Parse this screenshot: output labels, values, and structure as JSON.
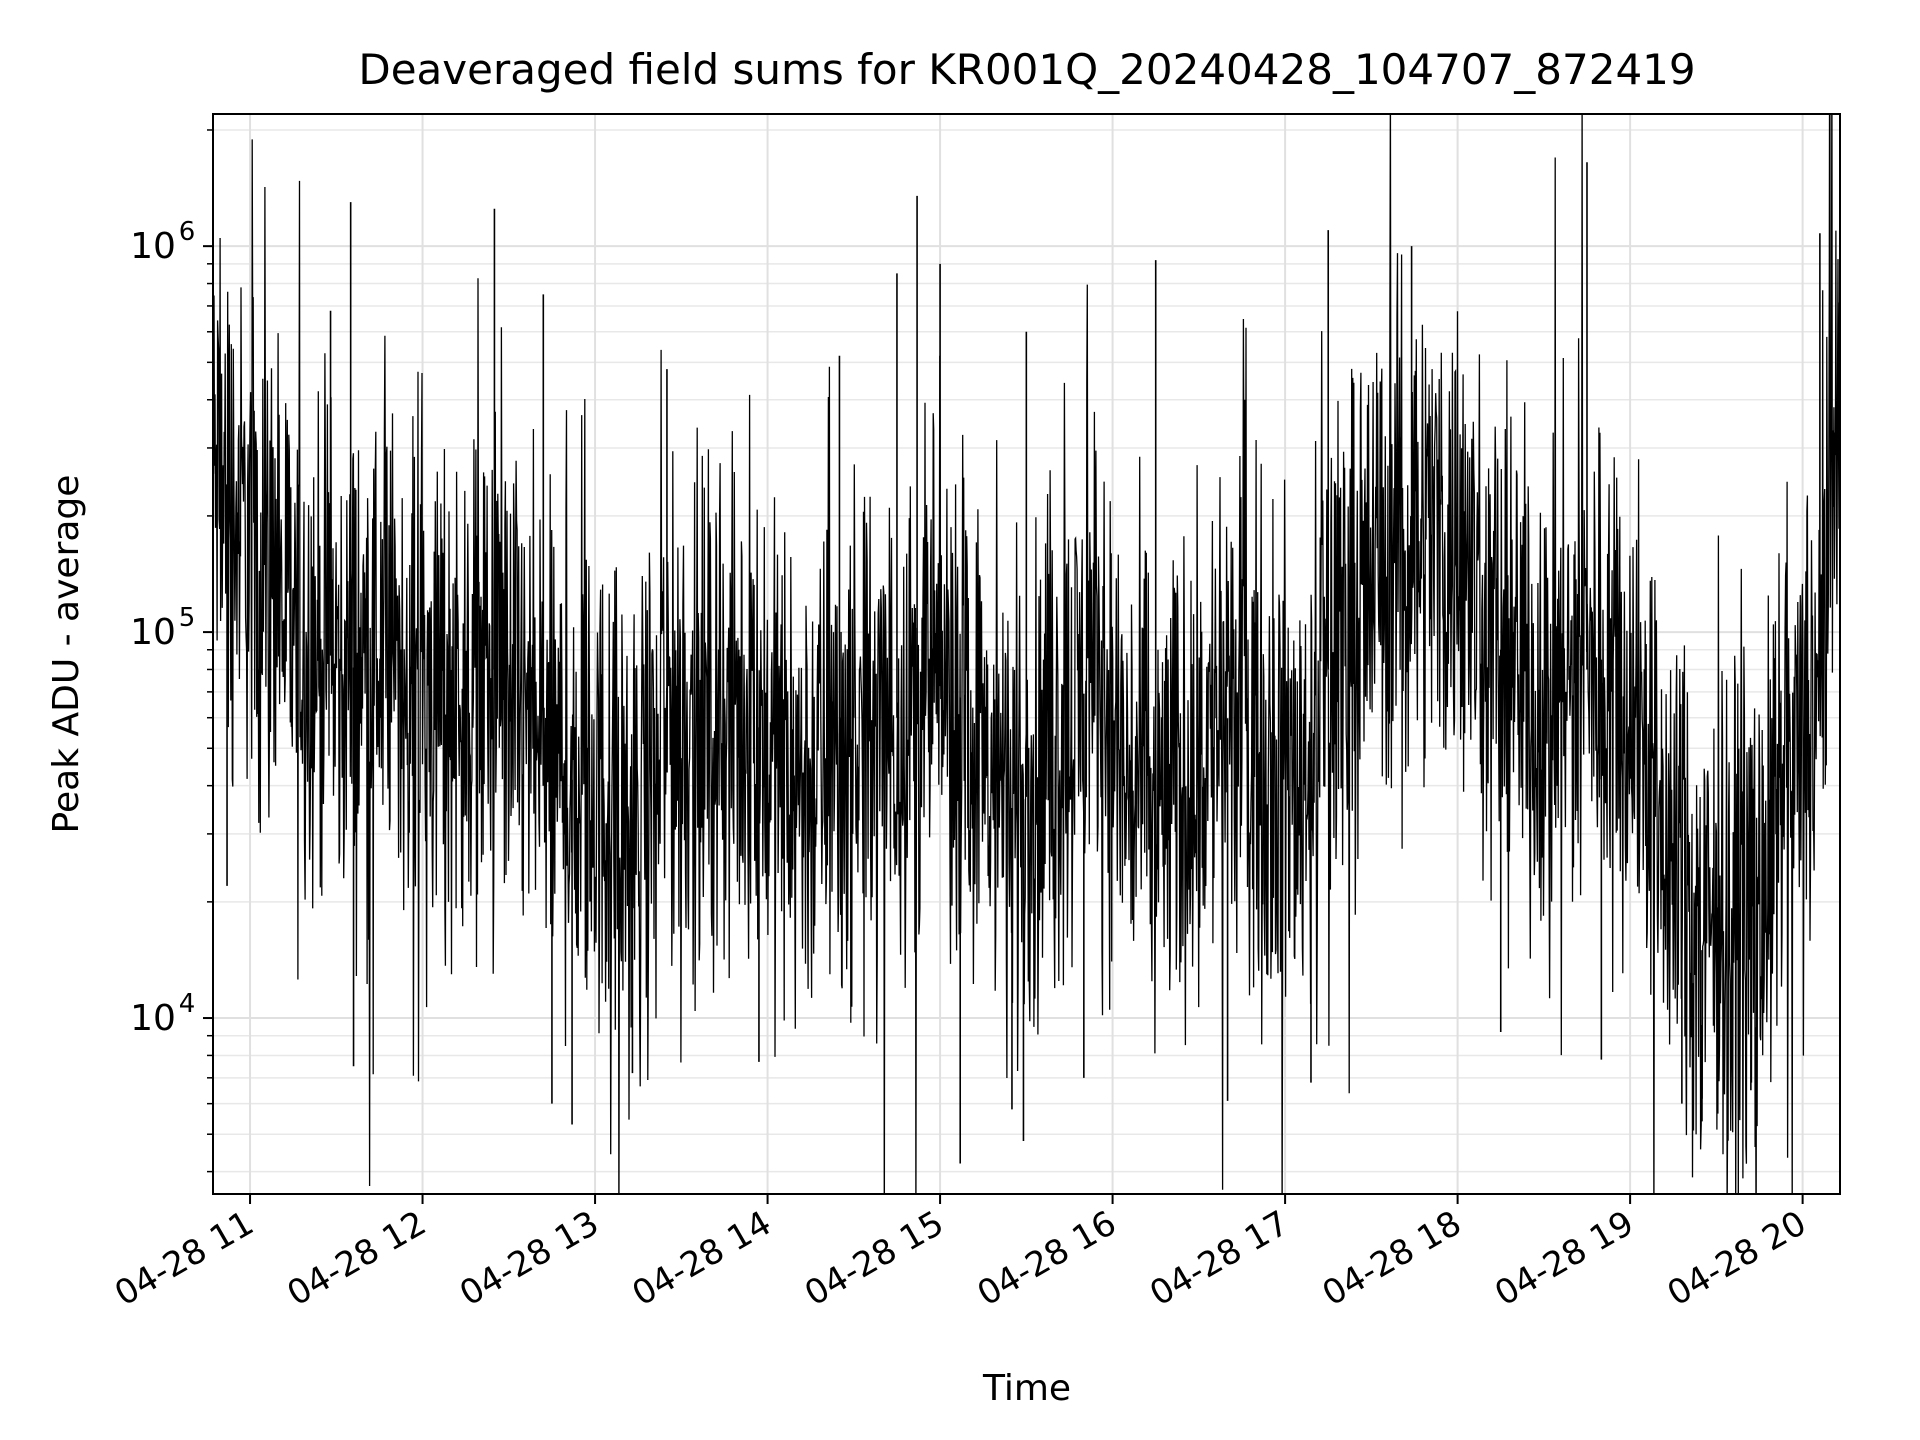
{
  "chart_data": {
    "type": "line",
    "title": "Deaveraged field sums for KR001Q_20240428_104707_872419",
    "xlabel": "Time",
    "ylabel": "Peak ADU - average",
    "y_scale": "log",
    "ylim": [
      3500,
      2200000
    ],
    "xlim": [
      "2024-04-28 10:47:07",
      "2024-04-28 20:13:00"
    ],
    "grid": true,
    "grid_minor": true,
    "line_color": "#000000",
    "x_ticks": [
      {
        "t": "2024-04-28 11:00",
        "label": "04-28 11"
      },
      {
        "t": "2024-04-28 12:00",
        "label": "04-28 12"
      },
      {
        "t": "2024-04-28 13:00",
        "label": "04-28 13"
      },
      {
        "t": "2024-04-28 14:00",
        "label": "04-28 14"
      },
      {
        "t": "2024-04-28 15:00",
        "label": "04-28 15"
      },
      {
        "t": "2024-04-28 16:00",
        "label": "04-28 16"
      },
      {
        "t": "2024-04-28 17:00",
        "label": "04-28 17"
      },
      {
        "t": "2024-04-28 18:00",
        "label": "04-28 18"
      },
      {
        "t": "2024-04-28 19:00",
        "label": "04-28 19"
      },
      {
        "t": "2024-04-28 20:00",
        "label": "04-28 20"
      }
    ],
    "y_ticks": [
      {
        "v": 10000,
        "label": "10",
        "exp": "4"
      },
      {
        "v": 100000,
        "label": "10",
        "exp": "5"
      },
      {
        "v": 1000000,
        "label": "10",
        "exp": "6"
      }
    ],
    "series": [
      {
        "x": [
          "2024-04-28 10:47",
          "2024-04-28 10:55",
          "2024-04-28 11:05",
          "2024-04-28 11:15",
          "2024-04-28 11:25",
          "2024-04-28 11:35",
          "2024-04-28 11:45",
          "2024-04-28 11:55",
          "2024-04-28 12:05",
          "2024-04-28 12:15",
          "2024-04-28 12:25",
          "2024-04-28 12:35",
          "2024-04-28 12:45",
          "2024-04-28 12:55",
          "2024-04-28 13:05",
          "2024-04-28 13:15",
          "2024-04-28 13:25",
          "2024-04-28 13:35",
          "2024-04-28 13:45",
          "2024-04-28 13:55",
          "2024-04-28 14:05",
          "2024-04-28 14:15",
          "2024-04-28 14:25",
          "2024-04-28 14:35",
          "2024-04-28 14:45",
          "2024-04-28 14:55",
          "2024-04-28 15:05",
          "2024-04-28 15:15",
          "2024-04-28 15:25",
          "2024-04-28 15:35",
          "2024-04-28 15:45",
          "2024-04-28 15:55",
          "2024-04-28 16:05",
          "2024-04-28 16:15",
          "2024-04-28 16:25",
          "2024-04-28 16:35",
          "2024-04-28 16:45",
          "2024-04-28 16:55",
          "2024-04-28 17:05",
          "2024-04-28 17:15",
          "2024-04-28 17:25",
          "2024-04-28 17:35",
          "2024-04-28 17:45",
          "2024-04-28 17:55",
          "2024-04-28 18:05",
          "2024-04-28 18:15",
          "2024-04-28 18:25",
          "2024-04-28 18:35",
          "2024-04-28 18:45",
          "2024-04-28 18:55",
          "2024-04-28 19:05",
          "2024-04-28 19:15",
          "2024-04-28 19:25",
          "2024-04-28 19:35",
          "2024-04-28 19:45",
          "2024-04-28 19:55",
          "2024-04-28 20:05",
          "2024-04-28 20:12"
        ],
        "y": [
          250000,
          200000,
          150000,
          100000,
          90000,
          80000,
          90000,
          85000,
          70000,
          75000,
          80000,
          60000,
          45000,
          40000,
          35000,
          30000,
          60000,
          60000,
          55000,
          60000,
          45000,
          40000,
          50000,
          50000,
          60000,
          70000,
          75000,
          45000,
          35000,
          40000,
          60000,
          80000,
          40000,
          35000,
          40000,
          55000,
          65000,
          45000,
          40000,
          80000,
          120000,
          160000,
          200000,
          180000,
          130000,
          90000,
          75000,
          70000,
          80000,
          90000,
          50000,
          25000,
          15000,
          20000,
          20000,
          40000,
          60000,
          350000
        ]
      }
    ],
    "spikes": [
      {
        "t": "2024-04-28 11:35",
        "y": 1300000
      },
      {
        "t": "2024-04-28 11:28",
        "y": 680000
      },
      {
        "t": "2024-04-28 11:36",
        "y": 7500
      },
      {
        "t": "2024-04-28 10:52",
        "y": 22000
      },
      {
        "t": "2024-04-28 12:25",
        "y": 1250000
      },
      {
        "t": "2024-04-28 12:42",
        "y": 750000
      },
      {
        "t": "2024-04-28 12:45",
        "y": 6000
      },
      {
        "t": "2024-04-28 12:52",
        "y": 5300
      },
      {
        "t": "2024-04-28 13:13",
        "y": 7200
      },
      {
        "t": "2024-04-28 13:25",
        "y": 480000
      },
      {
        "t": "2024-04-28 13:57",
        "y": 7700
      },
      {
        "t": "2024-04-28 14:25",
        "y": 520000
      },
      {
        "t": "2024-04-28 14:45",
        "y": 850000
      },
      {
        "t": "2024-04-28 14:52",
        "y": 1350000
      },
      {
        "t": "2024-04-28 15:00",
        "y": 900000
      },
      {
        "t": "2024-04-28 15:07",
        "y": 4200
      },
      {
        "t": "2024-04-28 15:25",
        "y": 5800
      },
      {
        "t": "2024-04-28 15:29",
        "y": 4800
      },
      {
        "t": "2024-04-28 15:30",
        "y": 600000
      },
      {
        "t": "2024-04-28 15:50",
        "y": 7000
      },
      {
        "t": "2024-04-28 16:15",
        "y": 920000
      },
      {
        "t": "2024-04-28 16:40",
        "y": 6100
      },
      {
        "t": "2024-04-28 17:09",
        "y": 6800
      },
      {
        "t": "2024-04-28 17:15",
        "y": 1100000
      },
      {
        "t": "2024-04-28 17:44",
        "y": 1000000
      },
      {
        "t": "2024-04-28 18:15",
        "y": 9200
      },
      {
        "t": "2024-04-28 18:45",
        "y": 1650000
      },
      {
        "t": "2024-04-28 18:50",
        "y": 7800
      },
      {
        "t": "2024-04-28 19:18",
        "y": 6000
      },
      {
        "t": "2024-04-28 19:25",
        "y": 5400
      },
      {
        "t": "2024-04-28 19:42",
        "y": 6500
      },
      {
        "t": "2024-04-28 20:06",
        "y": 1080000
      }
    ]
  }
}
